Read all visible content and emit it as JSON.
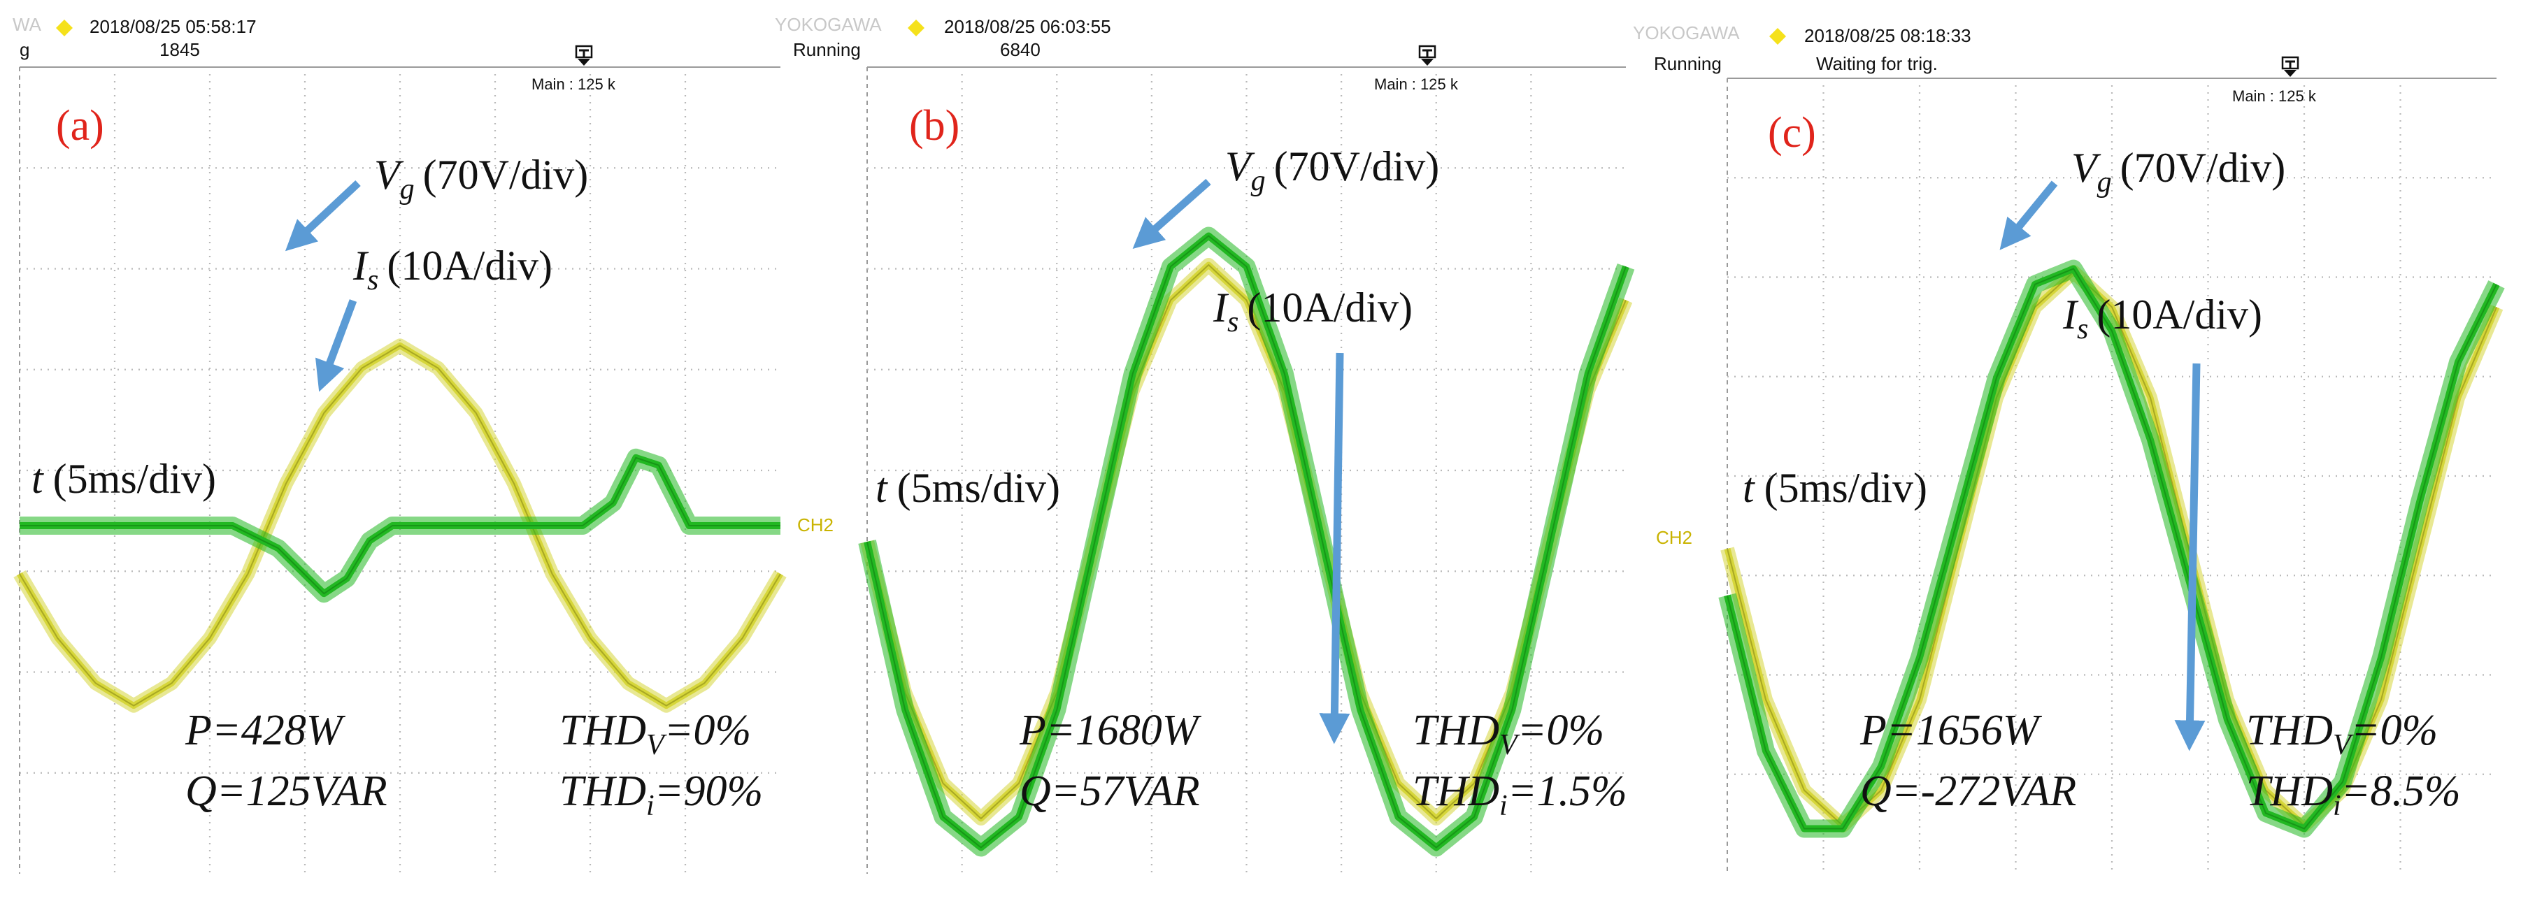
{
  "colors": {
    "voltage": "#d6d63a",
    "current": "#22b822",
    "arrow": "#5b9bd5",
    "panel_letter": "#e0241b",
    "brand_diamond": "#f5e11b"
  },
  "panels": [
    {
      "label": "(a)",
      "brand": "WA",
      "timestamp": "2018/08/25 05:58:17",
      "status": "g",
      "count": "1845",
      "main_info": "Main : 125 k",
      "ch_label": "",
      "vg_var": "V",
      "vg_sub": "g",
      "vg_unit": "(70V/div)",
      "is_var": "I",
      "is_sub": "s",
      "is_unit": "(10A/div)",
      "t_var": "t",
      "t_unit": "(5ms/div)",
      "p_text": "P=428W",
      "q_text": "Q=125VAR",
      "thdv_pre": "THD",
      "thdv_sub": "V",
      "thdv_post": "=0%",
      "thdi_pre": "THD",
      "thdi_sub": "i",
      "thdi_post": "=90%"
    },
    {
      "label": "(b)",
      "brand": "YOKOGAWA",
      "timestamp": "2018/08/25 06:03:55",
      "status": "Running",
      "count": "6840",
      "main_info": "Main : 125 k",
      "ch_label": "CH2",
      "vg_var": "V",
      "vg_sub": "g",
      "vg_unit": "(70V/div)",
      "is_var": "I",
      "is_sub": "s",
      "is_unit": "(10A/div)",
      "t_var": "t",
      "t_unit": "(5ms/div)",
      "p_text": "P=1680W",
      "q_text": "Q=57VAR",
      "thdv_pre": "THD",
      "thdv_sub": "V",
      "thdv_post": "=0%",
      "thdi_pre": "THD",
      "thdi_sub": "i",
      "thdi_post": "=1.5%"
    },
    {
      "label": "(c)",
      "brand": "YOKOGAWA",
      "timestamp": "2018/08/25 08:18:33",
      "status": "Running",
      "count": "Waiting for trig.",
      "main_info": "Main : 125 k",
      "ch_label": "CH2",
      "vg_var": "V",
      "vg_sub": "g",
      "vg_unit": "(70V/div)",
      "is_var": "I",
      "is_sub": "s",
      "is_unit": "(10A/div)",
      "t_var": "t",
      "t_unit": "(5ms/div)",
      "p_text": "P=1656W",
      "q_text": "Q=-272VAR",
      "thdv_pre": "THD",
      "thdv_sub": "V",
      "thdv_post": "=0%",
      "thdi_pre": "THD",
      "thdi_sub": "i",
      "thdi_post": "=8.5%"
    }
  ],
  "chart_data": [
    {
      "type": "line",
      "title": "(a)",
      "x_unit": "ms",
      "x_range": [
        0,
        50
      ],
      "series": [
        {
          "name": "Vg",
          "unit": "V",
          "x": [
            0,
            2.5,
            5,
            7.5,
            10,
            12.5,
            15,
            17.5,
            20,
            22.5,
            25,
            27.5,
            30,
            32.5,
            35,
            37.5,
            40,
            42.5,
            45,
            47.5,
            50
          ],
          "values": [
            -75,
            -175,
            -245,
            -280,
            -245,
            -175,
            -75,
            65,
            175,
            245,
            280,
            245,
            175,
            65,
            -75,
            -175,
            -245,
            -280,
            -245,
            -175,
            -75
          ]
        },
        {
          "name": "Is",
          "unit": "A",
          "x": [
            0,
            5,
            10,
            14,
            17,
            20,
            21.5,
            23,
            24.5,
            26,
            27.5,
            29,
            31,
            33,
            35,
            37,
            39,
            40.5,
            42,
            44,
            46,
            48,
            50
          ],
          "values": [
            0,
            0,
            0,
            0,
            -3,
            -9,
            -7,
            -2,
            0,
            0,
            0,
            0,
            0,
            0,
            0,
            0,
            3,
            9,
            8,
            0,
            0,
            0,
            0
          ]
        }
      ]
    },
    {
      "type": "line",
      "title": "(b)",
      "x_unit": "ms",
      "x_range": [
        0,
        50
      ],
      "series": [
        {
          "name": "Vg",
          "unit": "V",
          "x": [
            0,
            2.5,
            5,
            7.5,
            10,
            12.5,
            15,
            17.5,
            20,
            22.5,
            25,
            27.5,
            30,
            32.5,
            35,
            37.5,
            40,
            42.5,
            45,
            47.5,
            50
          ],
          "values": [
            0,
            -150,
            -240,
            -275,
            -240,
            -150,
            0,
            150,
            240,
            275,
            240,
            150,
            0,
            -150,
            -240,
            -275,
            -240,
            -150,
            0,
            150,
            240
          ]
        },
        {
          "name": "Is",
          "unit": "A",
          "x": [
            0,
            2.5,
            5,
            7.5,
            10,
            12.5,
            15,
            17.5,
            20,
            22.5,
            25,
            27.5,
            30,
            32.5,
            35,
            37.5,
            40,
            42.5,
            45,
            47.5,
            50
          ],
          "values": [
            0,
            -11,
            -18,
            -20,
            -18,
            -11,
            0,
            11,
            18,
            20,
            18,
            11,
            0,
            -11,
            -18,
            -20,
            -18,
            -11,
            0,
            11,
            18
          ]
        }
      ]
    },
    {
      "type": "line",
      "title": "(c)",
      "x_unit": "ms",
      "x_range": [
        0,
        50
      ],
      "series": [
        {
          "name": "Vg",
          "unit": "V",
          "x": [
            0,
            2.5,
            5,
            7.5,
            10,
            12.5,
            15,
            17.5,
            20,
            22.5,
            25,
            27.5,
            30,
            32.5,
            35,
            37.5,
            40,
            42.5,
            45,
            47.5,
            50
          ],
          "values": [
            0,
            -150,
            -240,
            -275,
            -240,
            -150,
            0,
            150,
            240,
            275,
            240,
            150,
            0,
            -150,
            -240,
            -275,
            -240,
            -150,
            0,
            150,
            240
          ]
        },
        {
          "name": "Is",
          "unit": "A",
          "x": [
            0,
            2.5,
            5,
            7.5,
            10,
            12.5,
            15,
            17.5,
            20,
            22.5,
            25,
            27.5,
            30,
            32.5,
            35,
            37.5,
            40,
            42.5,
            45,
            47.5,
            50
          ],
          "values": [
            -3,
            -13,
            -18,
            -18,
            -14,
            -7,
            2,
            11,
            17,
            18,
            14,
            7,
            -2,
            -11,
            -17,
            -18,
            -15,
            -7,
            3,
            12,
            17
          ]
        }
      ]
    }
  ]
}
